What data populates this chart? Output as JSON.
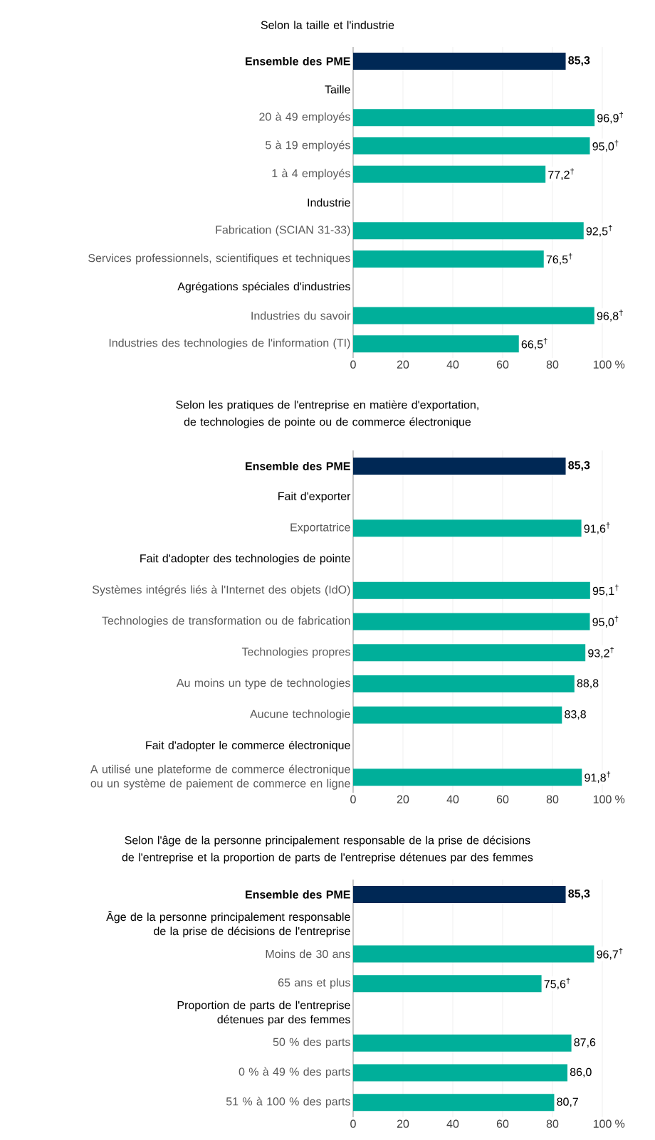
{
  "chart_data": [
    {
      "type": "bar",
      "orientation": "horizontal",
      "title": "Selon la taille et l'industrie",
      "xlabel": "%",
      "grid": "x",
      "xlim": [
        0,
        100
      ],
      "xticks": [
        0,
        20,
        40,
        60,
        80,
        100
      ],
      "categories": [
        "Ensemble des PME",
        "Taille",
        "20 à 49 employés",
        "5 à 19 employés",
        "1 à 4 employés",
        "Industrie",
        "Fabrication (SCIAN 31-33)",
        "Services professionnels, scientifiques et techniques",
        "Agrégations spéciales d'industries",
        "Industries du savoir",
        "Industries des technologies de l'information (TI)"
      ],
      "values": [
        85.3,
        null,
        96.9,
        95.0,
        77.2,
        null,
        92.5,
        76.5,
        null,
        96.8,
        66.5
      ],
      "value_labels": [
        "85,3",
        null,
        "96,9$^{†}$",
        "95,0$^{†}$",
        "77,2$^{†}$",
        null,
        "92,5$^{†}$",
        "76,5$^{†}$",
        null,
        "96,8$^{†}$",
        "66,5$^{†}$"
      ],
      "colors": [
        "#002855",
        null,
        "#00af9a",
        "#00af9a",
        "#00af9a",
        null,
        "#00af9a",
        "#00af9a",
        null,
        "#00af9a",
        "#00af9a"
      ]
    },
    {
      "type": "bar",
      "orientation": "horizontal",
      "title": "Selon les pratiques de l'entreprise en matière d'exportation, de technologies de pointe ou de commerce électronique",
      "xlabel": "%",
      "grid": "x",
      "xlim": [
        0,
        100
      ],
      "xticks": [
        0,
        20,
        40,
        60,
        80,
        100
      ],
      "categories": [
        "Ensemble des PME",
        "Fait d'exporter",
        "Exportatrice",
        "Fait  d'adopter des technologies de pointe",
        "Systèmes intégrés liés à l'Internet des objets (IdO)",
        "Technologies de transformation ou de fabrication",
        "Technologies propres",
        "Au moins un type de technologies",
        "Aucune technologie",
        "Fait d'adopter le commerce électronique",
        "A utilisé une plateforme de commerce électronique ou un système de paiement de commerce en ligne"
      ],
      "values": [
        85.3,
        null,
        91.6,
        null,
        95.1,
        95.0,
        93.2,
        88.8,
        83.8,
        null,
        91.8
      ],
      "value_labels": [
        "85,3",
        null,
        "91,6$^{†}$",
        null,
        "95,1$^{†}$",
        "95,0$^{†}$",
        "93,2$^{†}$",
        "88,8",
        "83,8",
        null,
        "91,8$^{†}$"
      ],
      "colors": [
        "#002855",
        null,
        "#00af9a",
        null,
        "#00af9a",
        "#00af9a",
        "#00af9a",
        "#00af9a",
        "#00af9a",
        null,
        "#00af9a"
      ]
    },
    {
      "type": "bar",
      "orientation": "horizontal",
      "title": "Selon l'âge de la personne principalement responsable de la prise de décisions de l'entreprise et la proportion de parts de l'entreprise détenues par des femmes",
      "xlabel": "%",
      "grid": "x",
      "xlim": [
        0,
        100
      ],
      "xticks": [
        0,
        20,
        40,
        60,
        80,
        100
      ],
      "categories": [
        "Ensemble des PME",
        "Âge de la personne principalement responsable de la prise de décisions de l'entreprise",
        "Moins de 30 ans",
        "65 ans et plus",
        "Proportion de parts de l'entreprise détenues par des femmes",
        "50 % des parts",
        "0 % à 49 % des parts",
        "51 % à 100 % des parts"
      ],
      "values": [
        85.3,
        null,
        96.7,
        75.6,
        null,
        87.6,
        86.0,
        80.7
      ],
      "value_labels": [
        "85,3",
        null,
        "96,7$^{†}$",
        "75,6$^{†}$",
        null,
        "87,6",
        "86,0",
        "80,7"
      ],
      "colors": [
        "#002855",
        null,
        "#00af9a",
        "#00af9a",
        null,
        "#00af9a",
        "#00af9a",
        "#00af9a"
      ]
    }
  ]
}
